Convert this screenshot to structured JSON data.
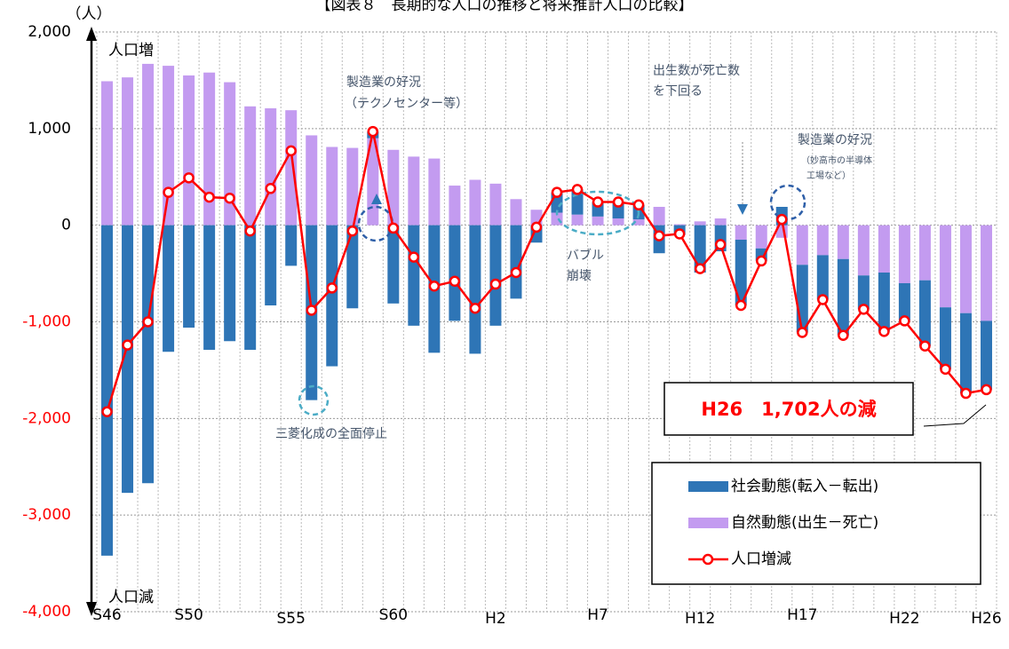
{
  "chart_data": {
    "type": "bar_line",
    "title": "【図表８　長期的な人口の推移と将来推計人口の比較】",
    "y_unit": "（人）",
    "categories": [
      "S46",
      null,
      null,
      null,
      "S50",
      null,
      null,
      null,
      null,
      "S55",
      null,
      null,
      null,
      null,
      "S60",
      null,
      null,
      null,
      null,
      "H2",
      null,
      null,
      null,
      null,
      "H7",
      null,
      null,
      null,
      null,
      "H12",
      null,
      null,
      null,
      null,
      "H17",
      null,
      null,
      null,
      null,
      "H22",
      null,
      null,
      null,
      "H26"
    ],
    "series": [
      {
        "name": "自然動態(出生－死亡)",
        "kind": "bar",
        "color": "#c39bf0",
        "values": [
          1490,
          1530,
          1670,
          1650,
          1550,
          1580,
          1480,
          1230,
          1210,
          1190,
          930,
          810,
          800,
          900,
          780,
          710,
          690,
          410,
          470,
          430,
          270,
          160,
          130,
          110,
          90,
          70,
          60,
          190,
          10,
          40,
          70,
          -150,
          -240,
          -130,
          -410,
          -310,
          -350,
          -520,
          -490,
          -600,
          -570,
          -850,
          -910,
          -990
        ]
      },
      {
        "name": "社会動態(転入－転出)",
        "kind": "bar",
        "color": "#2e75b6",
        "values": [
          -3420,
          -2770,
          -2670,
          -1310,
          -1060,
          -1290,
          -1200,
          -1290,
          -830,
          -420,
          -1810,
          -1460,
          -860,
          70,
          -810,
          -1040,
          -1320,
          -990,
          -1330,
          -1040,
          -760,
          -180,
          210,
          260,
          150,
          170,
          150,
          -290,
          -100,
          -490,
          -270,
          -680,
          -130,
          190,
          -700,
          -460,
          -790,
          -350,
          -610,
          -390,
          -680,
          -640,
          -830,
          -712
        ]
      },
      {
        "name": "人口増減",
        "kind": "line",
        "color": "#ff0000",
        "values": [
          -1930,
          -1240,
          -1000,
          340,
          490,
          290,
          280,
          -60,
          380,
          770,
          -880,
          -650,
          -60,
          970,
          -30,
          -330,
          -630,
          -580,
          -860,
          -610,
          -490,
          -20,
          340,
          370,
          240,
          240,
          210,
          -110,
          -90,
          -450,
          -200,
          -830,
          -370,
          60,
          -1110,
          -770,
          -1140,
          -870,
          -1100,
          -990,
          -1250,
          -1490,
          -1740,
          -1702
        ]
      }
    ],
    "legend_order": [
      1,
      0,
      2
    ],
    "ylim": [
      -4000,
      2000
    ],
    "yticks": [
      {
        "value": 2000,
        "label": "2,000"
      },
      {
        "value": 1000,
        "label": "1,000"
      },
      0,
      {
        "value": -1000,
        "label": "-1,000"
      },
      {
        "value": -2000,
        "label": "-2,000"
      },
      {
        "value": -3000,
        "label": "-3,000"
      },
      {
        "value": -4000,
        "label": "-4,000"
      }
    ],
    "grid": true,
    "axis_notes": [
      "人口増",
      "人口減"
    ],
    "annotations": [
      "製造業の好況",
      "（テクノセンター等）",
      "出生数が死亡数",
      "を下回る",
      "製造業の好況",
      "（妙高市の半導体",
      "工場など）",
      "バブル",
      "崩壊",
      "三菱化成の全面停止"
    ],
    "callout": "H26　1,702人の減"
  }
}
